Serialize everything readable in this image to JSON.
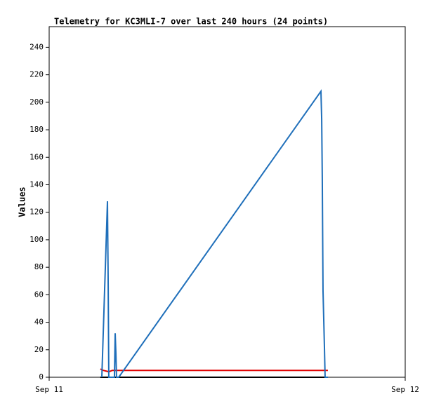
{
  "chart_data": {
    "type": "line",
    "title": "Telemetry for KC3MLI-7 over last 240 hours (24 points)",
    "y_label": "Values",
    "xlim": [
      0,
      24
    ],
    "xticks": [
      {
        "value": 0,
        "label": "Sep 11"
      },
      {
        "value": 24,
        "label": "Sep 12"
      }
    ],
    "ylim": [
      0,
      255
    ],
    "yticks": [
      0,
      20,
      40,
      60,
      80,
      100,
      120,
      140,
      160,
      180,
      200,
      220,
      240
    ],
    "series": [
      {
        "color": "#1f6fba",
        "x": [
          3.55,
          3.93,
          3.98,
          4.02,
          4.4,
          4.45,
          4.5,
          4.54,
          4.69,
          18.32,
          18.37,
          18.41,
          18.46,
          18.56,
          18.6,
          18.79
        ],
        "values": [
          0,
          128,
          65,
          0,
          0,
          32,
          17,
          0,
          0,
          208,
          188,
          145,
          63,
          20,
          0,
          0
        ]
      },
      {
        "color": "#e00000",
        "x": [
          3.45,
          3.65,
          4.02,
          4.26,
          18.79
        ],
        "values": [
          6,
          5,
          4,
          5,
          5
        ]
      },
      {
        "color": "#000000",
        "x": [
          3.45,
          18.79
        ],
        "values": [
          0,
          0
        ]
      }
    ]
  }
}
